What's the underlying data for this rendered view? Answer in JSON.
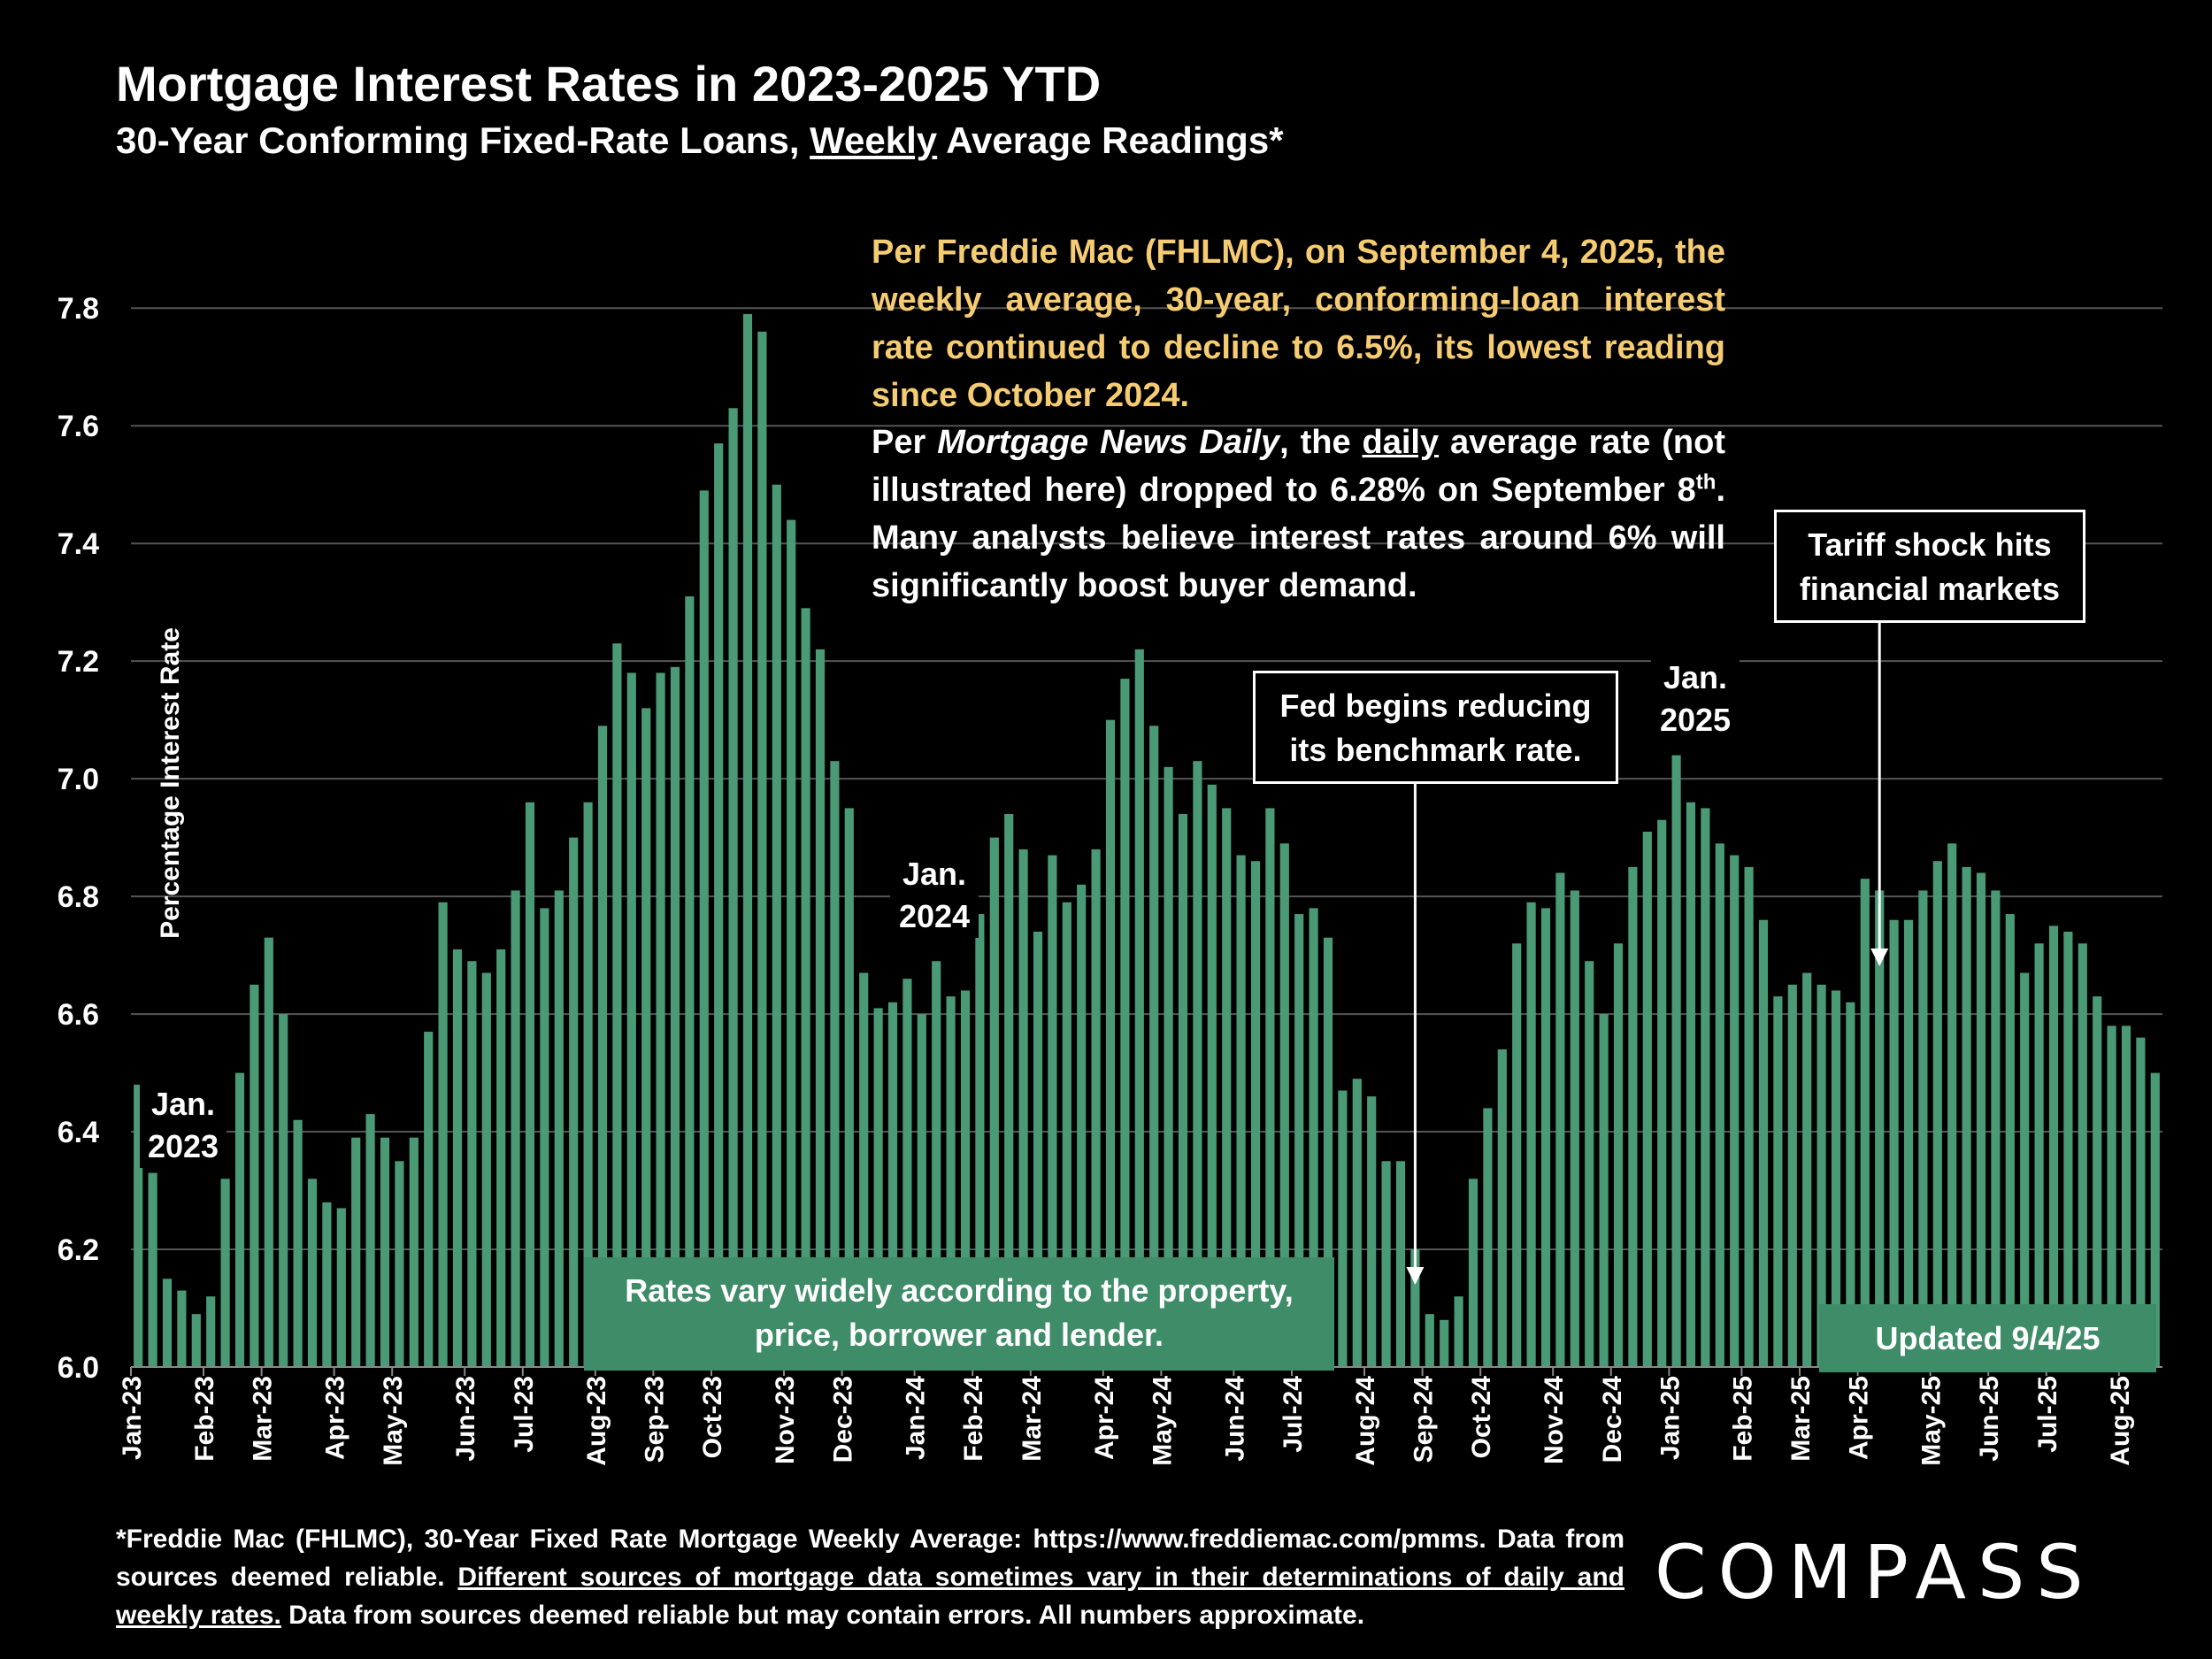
{
  "header": {
    "title": "Mortgage Interest Rates in 2023-2025 YTD",
    "subtitle_before": "30-Year Conforming Fixed-Rate Loans, ",
    "subtitle_emph": "Weekly",
    "subtitle_after": " Average Readings*"
  },
  "notes": {
    "freddie": "Per Freddie Mac (FHLMC), on September 4, 2025, the weekly average, 30-year, conforming-loan interest rate continued to decline to 6.5%, its lowest reading since October 2024.",
    "mnd_a": "Per ",
    "mnd_source": "Mortgage News Daily",
    "mnd_b": ", the ",
    "mnd_daily": "daily",
    "mnd_c": " average rate (not illustrated here) dropped to 6.28% on September 8",
    "mnd_sup": "th",
    "mnd_d": ". Many analysts believe interest rates around 6% will significantly boost buyer demand."
  },
  "callouts": {
    "fed_line1": "Fed begins reducing",
    "fed_line2": "its benchmark rate.",
    "tariff_line1": "Tariff shock hits",
    "tariff_line2": "financial markets",
    "rates_vary_line1": "Rates vary widely according to the property,",
    "rates_vary_line2": "price, borrower and lender.",
    "updated": "Updated 9/4/25"
  },
  "year_labels": {
    "y2023_a": "Jan.",
    "y2023_b": "2023",
    "y2024_a": "Jan.",
    "y2024_b": "2024",
    "y2025_a": "Jan.",
    "y2025_b": "2025"
  },
  "footnote": {
    "line_a": "*Freddie Mac (FHLMC), 30-Year Fixed Rate Mortgage Weekly Average:  https://www.freddiemac.com/pmms. Data from sources deemed reliable. ",
    "line_u": "Different sources of mortgage data sometimes vary in their determinations of daily and weekly rates.",
    "line_b": " Data from sources deemed reliable but may contain errors. All numbers approximate."
  },
  "logo": "COMPASS",
  "colors": {
    "bar": "#4a9a76",
    "annotation_box": "#3f8c69",
    "highlight_text": "#f5cc72",
    "grid": "#555555"
  },
  "chart_data": {
    "type": "bar",
    "ylabel": "Percentage Interest  Rate",
    "xlabel": "",
    "ylim": [
      6.0,
      7.85
    ],
    "yticks": [
      6.0,
      6.2,
      6.4,
      6.6,
      6.8,
      7.0,
      7.2,
      7.4,
      7.6,
      7.8
    ],
    "grid": "horizontal",
    "month_ticks": [
      {
        "label": "Jan-23",
        "index": 0
      },
      {
        "label": "Feb-23",
        "index": 5
      },
      {
        "label": "Mar-23",
        "index": 9
      },
      {
        "label": "Apr-23",
        "index": 14
      },
      {
        "label": "May-23",
        "index": 18
      },
      {
        "label": "Jun-23",
        "index": 23
      },
      {
        "label": "Jul-23",
        "index": 27
      },
      {
        "label": "Aug-23",
        "index": 32
      },
      {
        "label": "Sep-23",
        "index": 36
      },
      {
        "label": "Oct-23",
        "index": 40
      },
      {
        "label": "Nov-23",
        "index": 45
      },
      {
        "label": "Dec-23",
        "index": 49
      },
      {
        "label": "Jan-24",
        "index": 54
      },
      {
        "label": "Feb-24",
        "index": 58
      },
      {
        "label": "Mar-24",
        "index": 62
      },
      {
        "label": "Apr-24",
        "index": 67
      },
      {
        "label": "May-24",
        "index": 71
      },
      {
        "label": "Jun-24",
        "index": 76
      },
      {
        "label": "Jul-24",
        "index": 80
      },
      {
        "label": "Aug-24",
        "index": 85
      },
      {
        "label": "Sep-24",
        "index": 89
      },
      {
        "label": "Oct-24",
        "index": 93
      },
      {
        "label": "Nov-24",
        "index": 98
      },
      {
        "label": "Dec-24",
        "index": 102
      },
      {
        "label": "Jan-25",
        "index": 106
      },
      {
        "label": "Feb-25",
        "index": 111
      },
      {
        "label": "Mar-25",
        "index": 115
      },
      {
        "label": "Apr-25",
        "index": 119
      },
      {
        "label": "May-25",
        "index": 124
      },
      {
        "label": "Jun-25",
        "index": 128
      },
      {
        "label": "Jul-25",
        "index": 132
      },
      {
        "label": "Aug-25",
        "index": 137
      }
    ],
    "values": [
      6.48,
      6.33,
      6.15,
      6.13,
      6.09,
      6.12,
      6.32,
      6.5,
      6.65,
      6.73,
      6.6,
      6.42,
      6.32,
      6.28,
      6.27,
      6.39,
      6.43,
      6.39,
      6.35,
      6.39,
      6.57,
      6.79,
      6.71,
      6.69,
      6.67,
      6.71,
      6.81,
      6.96,
      6.78,
      6.81,
      6.9,
      6.96,
      7.09,
      7.23,
      7.18,
      7.12,
      7.18,
      7.19,
      7.31,
      7.49,
      7.57,
      7.63,
      7.79,
      7.76,
      7.5,
      7.44,
      7.29,
      7.22,
      7.03,
      6.95,
      6.67,
      6.61,
      6.62,
      6.66,
      6.6,
      6.69,
      6.63,
      6.64,
      6.77,
      6.9,
      6.94,
      6.88,
      6.74,
      6.87,
      6.79,
      6.82,
      6.88,
      7.1,
      7.17,
      7.22,
      7.09,
      7.02,
      6.94,
      7.03,
      6.99,
      6.95,
      6.87,
      6.86,
      6.95,
      6.89,
      6.77,
      6.78,
      6.73,
      6.47,
      6.49,
      6.46,
      6.35,
      6.35,
      6.2,
      6.09,
      6.08,
      6.12,
      6.32,
      6.44,
      6.54,
      6.72,
      6.79,
      6.78,
      6.84,
      6.81,
      6.69,
      6.6,
      6.72,
      6.85,
      6.91,
      6.93,
      7.04,
      6.96,
      6.95,
      6.89,
      6.87,
      6.85,
      6.76,
      6.63,
      6.65,
      6.67,
      6.65,
      6.64,
      6.62,
      6.83,
      6.81,
      6.76,
      6.76,
      6.81,
      6.86,
      6.89,
      6.85,
      6.84,
      6.81,
      6.77,
      6.67,
      6.72,
      6.75,
      6.74,
      6.72,
      6.63,
      6.58,
      6.58,
      6.56,
      6.5
    ]
  }
}
